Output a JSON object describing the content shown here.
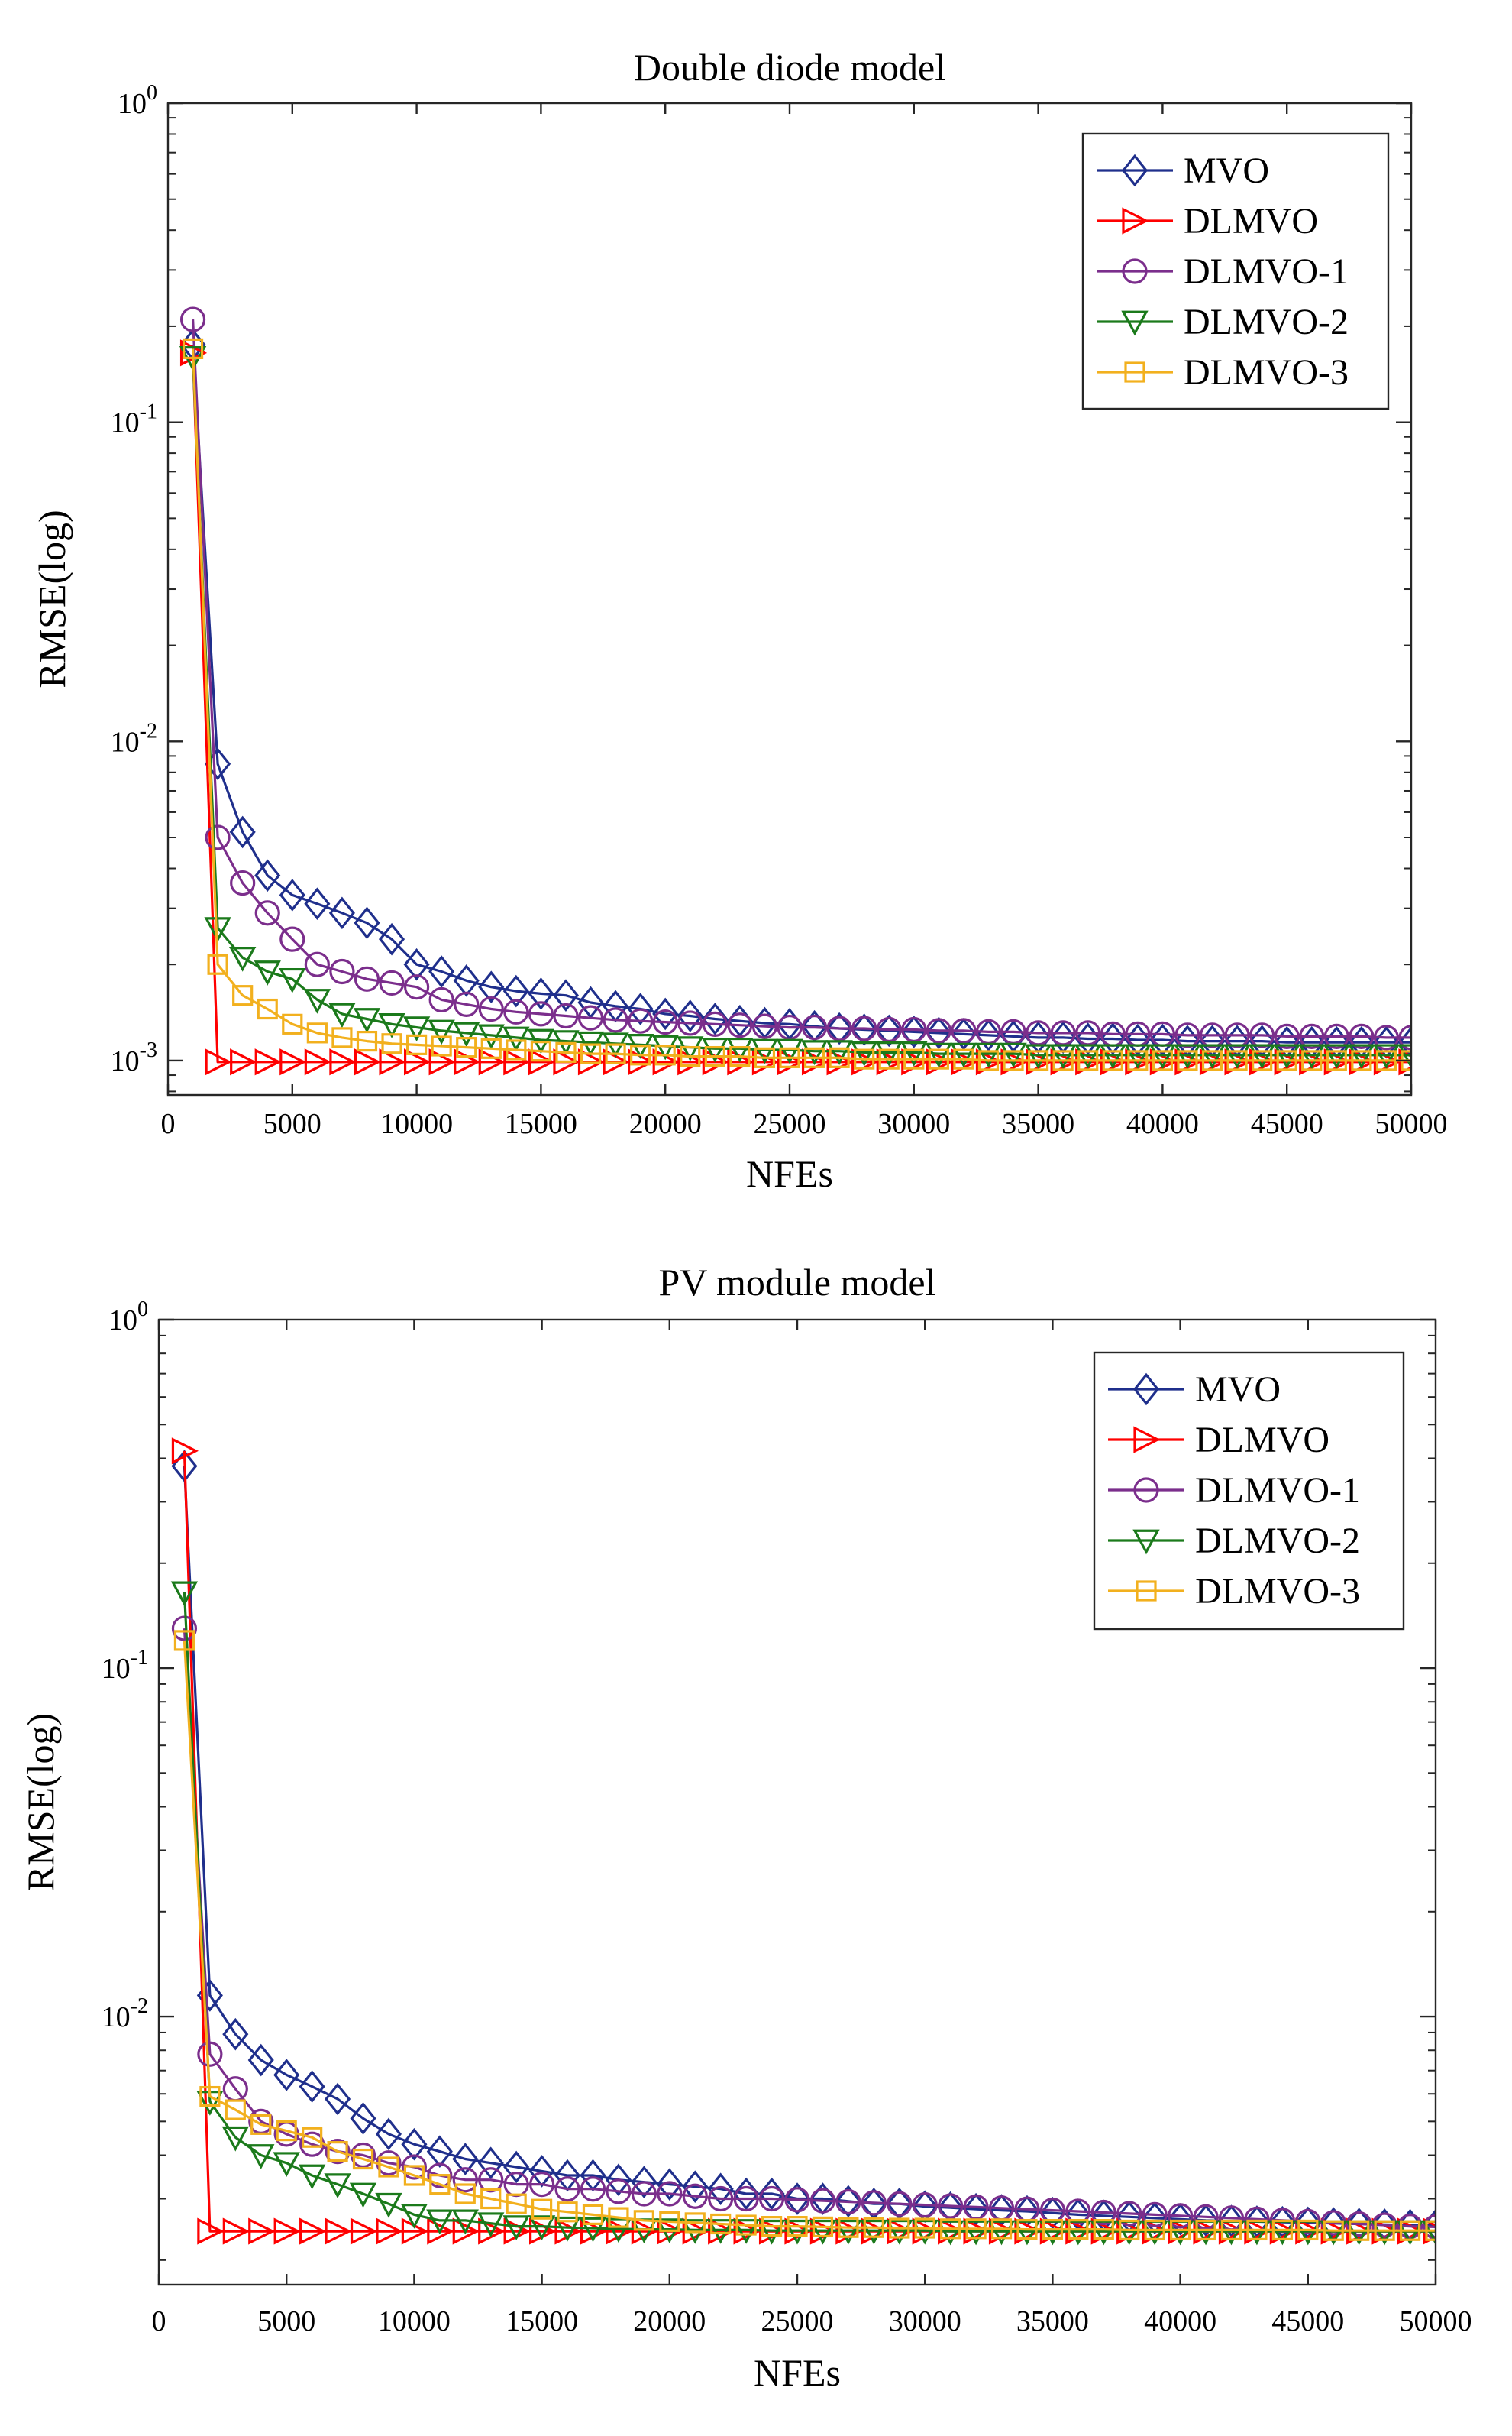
{
  "chart_data": [
    {
      "type": "line",
      "title": "Double diode model",
      "xlabel": "NFEs",
      "ylabel": "RMSE(log)",
      "yscale": "log",
      "xlim": [
        0,
        50000
      ],
      "ylim": [
        0.00078,
        1
      ],
      "grid": false,
      "legend_position": "top-right",
      "x_ticks": [
        0,
        5000,
        10000,
        15000,
        20000,
        25000,
        30000,
        35000,
        40000,
        45000,
        50000
      ],
      "y_ticks": [
        {
          "value": 0.001,
          "base": "10",
          "exp": "-3"
        },
        {
          "value": 0.01,
          "base": "10",
          "exp": "-2"
        },
        {
          "value": 0.1,
          "base": "10",
          "exp": "-1"
        },
        {
          "value": 1,
          "base": "10",
          "exp": "0"
        }
      ],
      "series": [
        {
          "name": "MVO",
          "color": "#1f2f8c",
          "marker": "diamond",
          "x_start": 1000,
          "x_step": 1000,
          "values": [
            0.175,
            0.0085,
            0.0052,
            0.0038,
            0.0033,
            0.0031,
            0.0029,
            0.0027,
            0.0024,
            0.002,
            0.0019,
            0.00178,
            0.0017,
            0.00165,
            0.00162,
            0.0016,
            0.00152,
            0.00148,
            0.00145,
            0.0014,
            0.00138,
            0.00135,
            0.00133,
            0.00131,
            0.0013,
            0.00128,
            0.00126,
            0.00125,
            0.00124,
            0.00123,
            0.00122,
            0.00121,
            0.0012,
            0.00119,
            0.00118,
            0.00118,
            0.00117,
            0.00117,
            0.00116,
            0.00116,
            0.00115,
            0.00115,
            0.00115,
            0.00115,
            0.00114,
            0.00114,
            0.00114,
            0.00114,
            0.00114,
            0.00114
          ]
        },
        {
          "name": "DLMVO",
          "color": "#ff0000",
          "marker": "triangle-right",
          "x_start": 1000,
          "x_step": 1000,
          "values": [
            0.165,
            0.00099,
            0.00099,
            0.00099,
            0.00099,
            0.00099,
            0.00099,
            0.00099,
            0.00099,
            0.00099,
            0.00099,
            0.00099,
            0.00099,
            0.00099,
            0.00099,
            0.00099,
            0.00099,
            0.00099,
            0.00099,
            0.00099,
            0.00099,
            0.00099,
            0.00099,
            0.00099,
            0.00099,
            0.00099,
            0.00099,
            0.00099,
            0.00099,
            0.00099,
            0.00099,
            0.00099,
            0.00099,
            0.00099,
            0.00099,
            0.00099,
            0.00099,
            0.00099,
            0.00099,
            0.00099,
            0.00099,
            0.00099,
            0.00099,
            0.00099,
            0.00099,
            0.00099,
            0.00099,
            0.00099,
            0.00099,
            0.00099
          ]
        },
        {
          "name": "DLMVO-1",
          "color": "#7b2e8c",
          "marker": "circle",
          "x_start": 1000,
          "x_step": 1000,
          "values": [
            0.21,
            0.005,
            0.0036,
            0.0029,
            0.0024,
            0.002,
            0.0019,
            0.0018,
            0.00175,
            0.0017,
            0.00155,
            0.0015,
            0.00145,
            0.00142,
            0.0014,
            0.00138,
            0.00136,
            0.00134,
            0.00133,
            0.00132,
            0.00131,
            0.0013,
            0.00129,
            0.00128,
            0.00127,
            0.00127,
            0.00126,
            0.00126,
            0.00125,
            0.00125,
            0.00124,
            0.00124,
            0.00123,
            0.00123,
            0.00122,
            0.00122,
            0.00122,
            0.00121,
            0.00121,
            0.00121,
            0.0012,
            0.0012,
            0.0012,
            0.0012,
            0.00119,
            0.00119,
            0.00119,
            0.00119,
            0.00118,
            0.00118
          ]
        },
        {
          "name": "DLMVO-2",
          "color": "#1b7a1b",
          "marker": "triangle-down",
          "x_start": 1000,
          "x_step": 1000,
          "values": [
            0.16,
            0.0026,
            0.0021,
            0.0019,
            0.0018,
            0.00155,
            0.0014,
            0.00135,
            0.0013,
            0.00127,
            0.00124,
            0.00122,
            0.0012,
            0.00118,
            0.00116,
            0.00115,
            0.00114,
            0.00113,
            0.00112,
            0.00111,
            0.0011,
            0.00109,
            0.00109,
            0.00108,
            0.00108,
            0.00107,
            0.00107,
            0.00106,
            0.00106,
            0.00106,
            0.00105,
            0.00105,
            0.00105,
            0.00105,
            0.00104,
            0.00104,
            0.00104,
            0.00104,
            0.00104,
            0.00104,
            0.00104,
            0.00104,
            0.00104,
            0.00104,
            0.00104,
            0.00104,
            0.00104,
            0.00104,
            0.00104,
            0.00104
          ]
        },
        {
          "name": "DLMVO-3",
          "color": "#f2b01e",
          "marker": "square",
          "x_start": 1000,
          "x_step": 1000,
          "values": [
            0.17,
            0.002,
            0.0016,
            0.00145,
            0.0013,
            0.00122,
            0.00118,
            0.00115,
            0.00113,
            0.00112,
            0.00111,
            0.0011,
            0.00109,
            0.00108,
            0.00107,
            0.00106,
            0.00105,
            0.00105,
            0.00104,
            0.00104,
            0.00103,
            0.00103,
            0.00103,
            0.00102,
            0.00102,
            0.00102,
            0.00102,
            0.00101,
            0.00101,
            0.00101,
            0.00101,
            0.00101,
            0.001,
            0.001,
            0.001,
            0.001,
            0.001,
            0.001,
            0.001,
            0.001,
            0.001,
            0.001,
            0.001,
            0.001,
            0.001,
            0.001,
            0.001,
            0.001,
            0.001,
            0.001
          ]
        }
      ]
    },
    {
      "type": "line",
      "title": "PV module model",
      "xlabel": "NFEs",
      "ylabel": "RMSE(log)",
      "yscale": "log",
      "xlim": [
        0,
        50000
      ],
      "ylim": [
        0.0017,
        1
      ],
      "grid": false,
      "legend_position": "top-right",
      "x_ticks": [
        0,
        5000,
        10000,
        15000,
        20000,
        25000,
        30000,
        35000,
        40000,
        45000,
        50000
      ],
      "y_ticks": [
        {
          "value": 0.01,
          "base": "10",
          "exp": "-2"
        },
        {
          "value": 0.1,
          "base": "10",
          "exp": "-1"
        },
        {
          "value": 1,
          "base": "10",
          "exp": "0"
        }
      ],
      "series": [
        {
          "name": "MVO",
          "color": "#1f2f8c",
          "marker": "diamond",
          "x_start": 1000,
          "x_step": 1000,
          "values": [
            0.38,
            0.0115,
            0.0089,
            0.0075,
            0.0068,
            0.0063,
            0.0058,
            0.0051,
            0.0046,
            0.0043,
            0.0041,
            0.0039,
            0.0038,
            0.0037,
            0.0036,
            0.0035,
            0.0035,
            0.0034,
            0.00335,
            0.0033,
            0.00325,
            0.0032,
            0.0031,
            0.0031,
            0.003,
            0.003,
            0.00295,
            0.0029,
            0.0029,
            0.00285,
            0.00283,
            0.0028,
            0.00278,
            0.00276,
            0.00273,
            0.0027,
            0.00268,
            0.00266,
            0.00264,
            0.00262,
            0.0026,
            0.00259,
            0.00258,
            0.00257,
            0.00256,
            0.00255,
            0.00254,
            0.00253,
            0.00252,
            0.00252
          ]
        },
        {
          "name": "DLMVO",
          "color": "#ff0000",
          "marker": "triangle-right",
          "x_start": 1000,
          "x_step": 1000,
          "values": [
            0.42,
            0.00242,
            0.00242,
            0.00242,
            0.00242,
            0.00242,
            0.00242,
            0.00242,
            0.00242,
            0.00242,
            0.00242,
            0.00242,
            0.00242,
            0.00242,
            0.00242,
            0.00242,
            0.00242,
            0.00242,
            0.00242,
            0.00242,
            0.00242,
            0.00242,
            0.00242,
            0.00242,
            0.00242,
            0.00242,
            0.00242,
            0.00242,
            0.00242,
            0.00242,
            0.00242,
            0.00242,
            0.00242,
            0.00242,
            0.00242,
            0.00242,
            0.00242,
            0.00242,
            0.00242,
            0.00242,
            0.00242,
            0.00242,
            0.00242,
            0.00242,
            0.00242,
            0.00242,
            0.00242,
            0.00242,
            0.00242,
            0.00242
          ]
        },
        {
          "name": "DLMVO-1",
          "color": "#7b2e8c",
          "marker": "circle",
          "x_start": 1000,
          "x_step": 1000,
          "values": [
            0.13,
            0.0078,
            0.0062,
            0.005,
            0.0046,
            0.0043,
            0.0041,
            0.004,
            0.0038,
            0.0037,
            0.0035,
            0.0034,
            0.0034,
            0.0033,
            0.0033,
            0.0032,
            0.0032,
            0.00315,
            0.0031,
            0.0031,
            0.00305,
            0.003,
            0.003,
            0.003,
            0.00298,
            0.00296,
            0.00294,
            0.00292,
            0.0029,
            0.00288,
            0.00286,
            0.00284,
            0.00282,
            0.0028,
            0.00278,
            0.00276,
            0.00274,
            0.00272,
            0.0027,
            0.00268,
            0.00266,
            0.00264,
            0.00262,
            0.0026,
            0.00258,
            0.00256,
            0.00254,
            0.00252,
            0.0025,
            0.00249
          ]
        },
        {
          "name": "DLMVO-2",
          "color": "#1b7a1b",
          "marker": "triangle-down",
          "x_start": 1000,
          "x_step": 1000,
          "values": [
            0.165,
            0.0057,
            0.0045,
            0.004,
            0.0038,
            0.0035,
            0.0033,
            0.0031,
            0.0029,
            0.0027,
            0.0026,
            0.0026,
            0.00255,
            0.0025,
            0.0025,
            0.00248,
            0.00247,
            0.00246,
            0.00245,
            0.00245,
            0.00244,
            0.00244,
            0.00244,
            0.00243,
            0.00243,
            0.00243,
            0.00243,
            0.00243,
            0.00243,
            0.00243,
            0.00242,
            0.00242,
            0.00242,
            0.00242,
            0.00242,
            0.00242,
            0.00242,
            0.00242,
            0.00242,
            0.00242,
            0.00242,
            0.00242,
            0.00242,
            0.00242,
            0.00242,
            0.00242,
            0.00242,
            0.00242,
            0.00242,
            0.00242
          ]
        },
        {
          "name": "DLMVO-3",
          "color": "#f2b01e",
          "marker": "square",
          "x_start": 1000,
          "x_step": 1000,
          "values": [
            0.12,
            0.0059,
            0.0054,
            0.0049,
            0.0047,
            0.0045,
            0.0041,
            0.0039,
            0.0037,
            0.0035,
            0.0033,
            0.0031,
            0.003,
            0.0029,
            0.0028,
            0.00275,
            0.0027,
            0.00265,
            0.0026,
            0.00258,
            0.00256,
            0.00254,
            0.00252,
            0.0025,
            0.0025,
            0.00249,
            0.00248,
            0.00248,
            0.00247,
            0.00247,
            0.00246,
            0.00246,
            0.00246,
            0.00245,
            0.00245,
            0.00245,
            0.00245,
            0.00244,
            0.00244,
            0.00244,
            0.00244,
            0.00244,
            0.00244,
            0.00244,
            0.00244,
            0.00243,
            0.00243,
            0.00243,
            0.00243,
            0.00243
          ]
        }
      ]
    }
  ]
}
